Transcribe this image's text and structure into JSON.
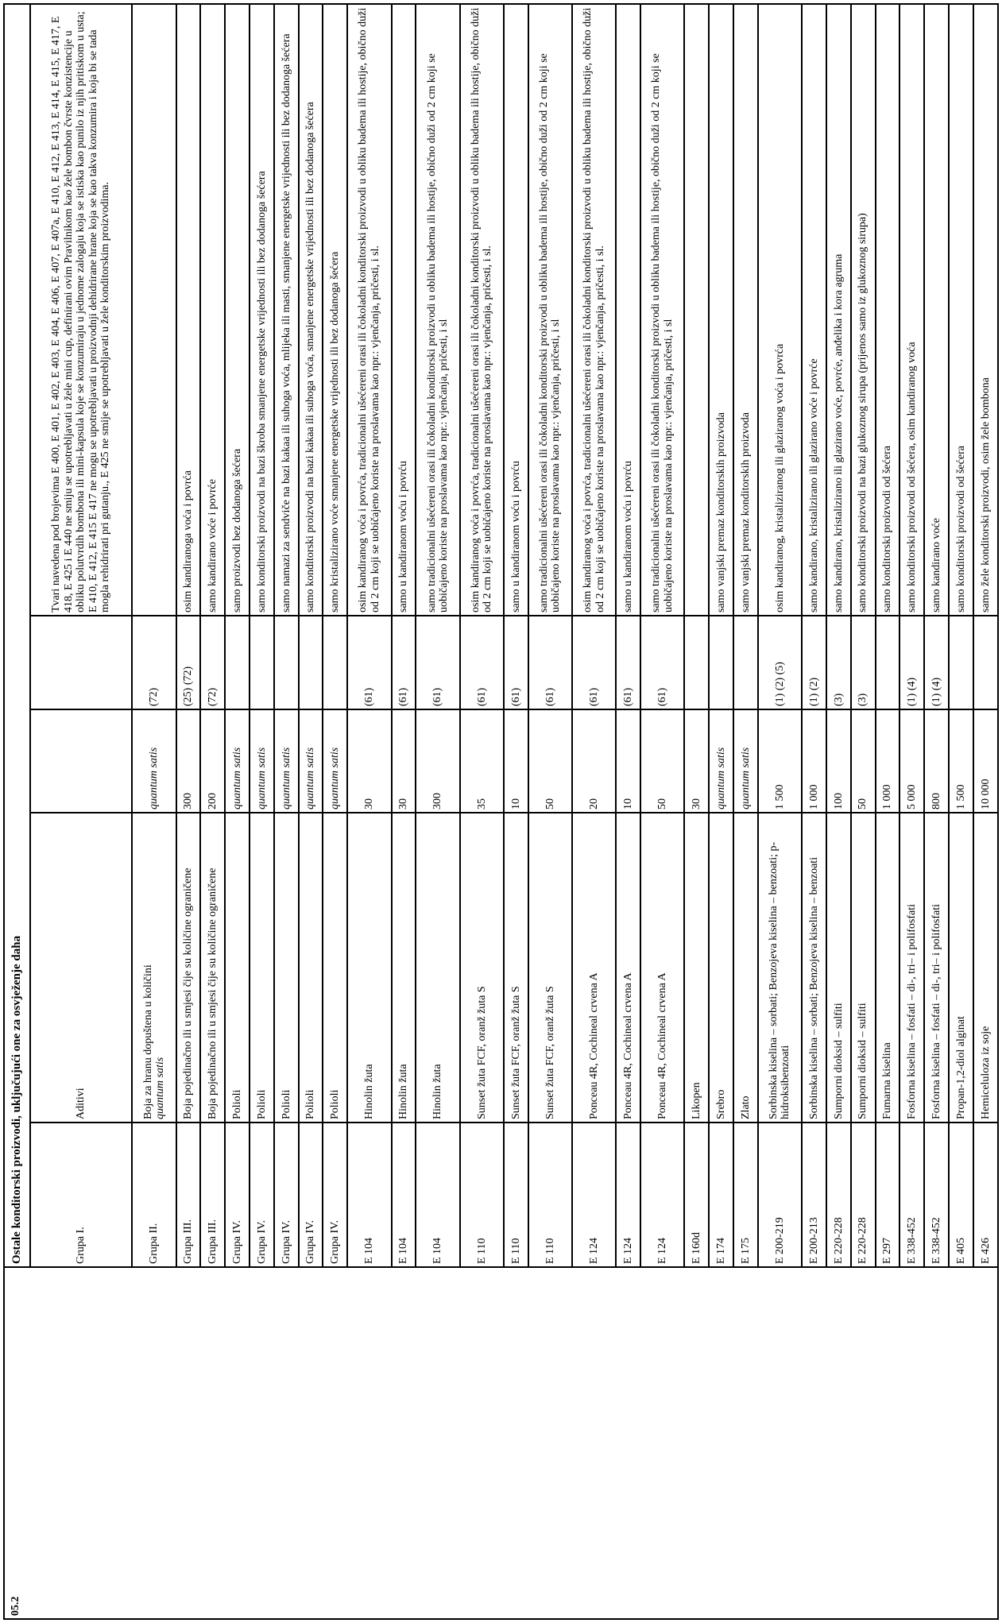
{
  "section_code": "05.2",
  "section_title": "Ostale konditorski proizvodi, uključujući one za osvježenje daha",
  "rows": [
    {
      "group": "Grupa I.",
      "additive": "Aditivi",
      "additive_note": "",
      "amount": "",
      "amount_italic": false,
      "notes": "",
      "restriction": "Tvari navedena pod brojevima E 400, E 401, E 402, E 403, E 404, E 406, E 407, E 407a, E 410, E 412, E 413, E 414, E 415, E 417, E 418, E 425 i E 440 ne smiju se upotrebljavati u žele mini cup, definirani ovim Pravilnikom kao žele bombon čvrste konzistencije u obliku polutvrdih bombona ili mini-kapsula koje se konzumiraju u jednome zalogaju koja se istiska kao punilo iz njih pritiskom u usta; E 410, E 412, E 415 E 417 ne mogu se upotrebljavati u proizvodnji dehidrirane hrane koja se kao takva konzumira i koja bi se tada mogla rehidrirati pri gutanju., E 425 ne smije se upotrebljavati u žele konditorskim proizvodima."
    },
    {
      "group": "Grupa II.",
      "additive": "Boja za hranu dopuštena u količini",
      "additive_note": "quantum satis",
      "amount": "quantum satis",
      "amount_italic": true,
      "notes": "(72)",
      "restriction": ""
    },
    {
      "group": "Grupa III.",
      "additive": "Boja pojedinačno ili u smjesi čije su količine ograničene",
      "additive_note": "",
      "amount": "300",
      "amount_italic": false,
      "notes": "(25) (72)",
      "restriction": "osim kandiranoga voća i povrća"
    },
    {
      "group": "Grupa III.",
      "additive": "Boja pojedinačno ili u smjesi čije su količine ograničene",
      "additive_note": "",
      "amount": "200",
      "amount_italic": false,
      "notes": "(72)",
      "restriction": "samo kandirano voće i povrće"
    },
    {
      "group": "Grupa IV.",
      "additive": "Polioli",
      "additive_note": "",
      "amount": "quantum satis",
      "amount_italic": true,
      "notes": "",
      "restriction": "samo proizvodi bez dodanoga šećera"
    },
    {
      "group": "Grupa IV.",
      "additive": "Polioli",
      "additive_note": "",
      "amount": "quantum satis",
      "amount_italic": true,
      "notes": "",
      "restriction": "samo konditorski proizvodi na bazi škroba smanjene energetske vrijednosti ili bez dodanoga šećera"
    },
    {
      "group": "Grupa IV.",
      "additive": "Polioli",
      "additive_note": "",
      "amount": "quantum satis",
      "amount_italic": true,
      "notes": "",
      "restriction": "samo namazi za sendviče na bazi kakaa ili suhoga voća, mlijeka ili masti, smanjene energetske vrijednosti ili bez dodanoga šećera"
    },
    {
      "group": "Grupa IV.",
      "additive": "Polioli",
      "additive_note": "",
      "amount": "quantum satis",
      "amount_italic": true,
      "notes": "",
      "restriction": "samo konditorski proizvodi na bazi kakaa ili suhoga voća, smanjene energetske vrijednosti ili bez dodanoga šećera"
    },
    {
      "group": "Grupa IV.",
      "additive": "Polioli",
      "additive_note": "",
      "amount": "quantum satis",
      "amount_italic": true,
      "notes": "",
      "restriction": "samo kristalizirano voće smanjene energetske vrijednosti ili bez dodanoga šećera"
    },
    {
      "group": "E 104",
      "additive": "Hinolin žuta",
      "additive_note": "",
      "amount": "30",
      "amount_italic": false,
      "notes": "(61)",
      "restriction": "osim kandiranog voća i povrća, tradicionalni ušećereni orasi ili čokoladni konditorski proizvodi u obliku badema ili hostije, obično duži od 2 cm koji se uobičajeno koriste na proslavama kao npr.: vjenčanja, pričesti, i sl."
    },
    {
      "group": "E 104",
      "additive": "Hinolin žuta",
      "additive_note": "",
      "amount": "30",
      "amount_italic": false,
      "notes": "(61)",
      "restriction": "samo u kandiranom voću i povrću"
    },
    {
      "group": "E 104",
      "additive": "Hinolin žuta",
      "additive_note": "",
      "amount": "300",
      "amount_italic": false,
      "notes": "(61)",
      "restriction": "samo tradicionalni ušećereni orasi ili čokoladni konditorski proizvodi u obliku badema ili hostije, obično duži od 2 cm koji se uobičajeno koriste na proslavama kao npr.: vjenčanja, pričesti, i sl"
    },
    {
      "group": "E 110",
      "additive": "Sunset žuta FCF, oranž žuta S",
      "additive_note": "",
      "amount": "35",
      "amount_italic": false,
      "notes": "(61)",
      "restriction": "osim kandiranog voća i povrća, tradicionalni ušećereni orasi ili čokoladni konditorski proizvodi u obliku badema ili hostije, obično  duži od 2 cm koji se uobičajeno koriste na proslavama kao npr.: vjenčanja, pričesti, i sl."
    },
    {
      "group": "E 110",
      "additive": "Sunset žuta FCF, oranž žuta S",
      "additive_note": "",
      "amount": "10",
      "amount_italic": false,
      "notes": "(61)",
      "restriction": "samo u kandiranom voću i povrću"
    },
    {
      "group": "E 110",
      "additive": "Sunset žuta FCF, oranž žuta S",
      "additive_note": "",
      "amount": "50",
      "amount_italic": false,
      "notes": "(61)",
      "restriction": "samo tradicionalni ušećereni orasi ili čokoladni konditorski proizvodi u obliku badema ili hostije, obično duži od 2 cm koji se uobičajeno koriste na proslavama kao npr.: vjenčanja, pričesti, i sl"
    },
    {
      "group": "E 124",
      "additive": "Ponceau 4R, Cochineal crvena A",
      "additive_note": "",
      "amount": "20",
      "amount_italic": false,
      "notes": "(61)",
      "restriction": "osim kandiranog voća i povrća, tradicionalni ušećereni orasi ili čokoladni konditorski proizvodi u obliku badema ili hostije, obično  duži od 2 cm koji se uobičajeno koriste na proslavama kao npr.: vjenčanja, pričesti, i sl."
    },
    {
      "group": "E 124",
      "additive": "Ponceau 4R, Cochineal crvena A",
      "additive_note": "",
      "amount": "10",
      "amount_italic": false,
      "notes": "(61)",
      "restriction": "samo u kandiranom voću i povrću"
    },
    {
      "group": "E 124",
      "additive": "Ponceau 4R, Cochineal crvena A",
      "additive_note": "",
      "amount": "50",
      "amount_italic": false,
      "notes": "(61)",
      "restriction": "samo tradicionalni ušećereni orasi ili čokoladni konditorski proizvodi u obliku badema ili hostije, obično  duži od 2 cm koji se uobičajeno koriste na proslavama kao npr.: vjenčanja, pričesti, i sl"
    },
    {
      "group": "E 160d",
      "additive": "Likopen",
      "additive_note": "",
      "amount": "30",
      "amount_italic": false,
      "notes": "",
      "restriction": ""
    },
    {
      "group": "E 174",
      "additive": "Srebro",
      "additive_note": "",
      "amount": "quantum satis",
      "amount_italic": true,
      "notes": "",
      "restriction": "samo vanjski premaz konditorskih proizvoda"
    },
    {
      "group": "E 175",
      "additive": "Zlato",
      "additive_note": "",
      "amount": "quantum satis",
      "amount_italic": true,
      "notes": "",
      "restriction": "samo vanjski premaz konditorskih proizvoda"
    },
    {
      "group": "E 200-219",
      "additive": "Sorbinska kiselina – sorbati; Benzojeva kiselina – benzoati; p-hidroksibenzoati",
      "additive_note": "",
      "amount": "1 500",
      "amount_italic": false,
      "notes": "(1) (2) (5)",
      "restriction": "osim kandiranog, kristaliziranog ili glaziranog voća i povrća"
    },
    {
      "group": "E 200-213",
      "additive": "Sorbinska kiselina – sorbati; Benzojeva kiselina – benzoati",
      "additive_note": "",
      "amount": "1 000",
      "amount_italic": false,
      "notes": "(1) (2)",
      "restriction": "samo kandirano, kristalizirano ili glazirano voće i povrće"
    },
    {
      "group": "E 220-228",
      "additive": "Sumporni dioksid – sulfiti",
      "additive_note": "",
      "amount": "100",
      "amount_italic": false,
      "notes": "(3)",
      "restriction": "samo kandirano, kristalizirano ili glazirano voće, povrće, anđelika i kora agruma"
    },
    {
      "group": "E 220-228",
      "additive": "Sumporni dioksid – sulfiti",
      "additive_note": "",
      "amount": "50",
      "amount_italic": false,
      "notes": "(3)",
      "restriction": "samo konditorski proizvodi na bazi glukoznog sirupa (prijenos samo iz glukoznog sirupa)"
    },
    {
      "group": "E 297",
      "additive": "Fumarna kiselina",
      "additive_note": "",
      "amount": "1 000",
      "amount_italic": false,
      "notes": "",
      "restriction": "samo konditorski proizvodi od šećera"
    },
    {
      "group": "E 338-452",
      "additive": "Fosforna kiselina – fosfati – di-, tri– i polifosfati",
      "additive_note": "",
      "amount": "5 000",
      "amount_italic": false,
      "notes": "(1) (4)",
      "restriction": "samo konditorski proizvodi od šećera, osim kandiranog voća"
    },
    {
      "group": "E 338-452",
      "additive": "Fosforna kiselina – fosfati – di-, tri– i polifosfati",
      "additive_note": "",
      "amount": "800",
      "amount_italic": false,
      "notes": "(1) (4)",
      "restriction": "samo kandirano voće"
    },
    {
      "group": "E 405",
      "additive": "Propan-1,2-diol alginat",
      "additive_note": "",
      "amount": "1 500",
      "amount_italic": false,
      "notes": "",
      "restriction": "samo konditorski proizvodi od šećera"
    },
    {
      "group": "E 426",
      "additive": "Hemiceluloza iz soje",
      "additive_note": "",
      "amount": "10 000",
      "amount_italic": false,
      "notes": "",
      "restriction": "samo žele konditorski proizvodi, osim žele bombona"
    }
  ]
}
